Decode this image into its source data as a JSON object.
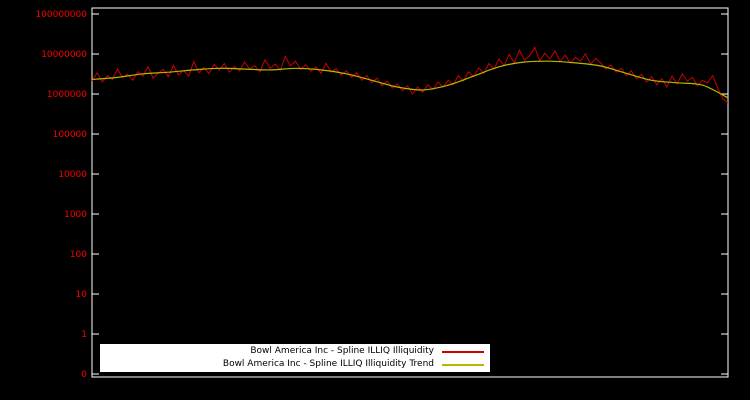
{
  "colors": {
    "background": "#000000",
    "axis": "#ffffff",
    "tick_label": "#ff0000",
    "legend_bg": "#ffffff",
    "legend_text": "#000000"
  },
  "chart_data": {
    "type": "line",
    "yscale": "log",
    "title": "",
    "xlabel": "",
    "ylabel": "",
    "grid": false,
    "legend_position": "bottom-center-inside",
    "yticks": [
      "0",
      "1",
      "10",
      "100",
      "1000",
      "10000",
      "100000",
      "1000000",
      "10000000",
      "100000000"
    ],
    "xticks": [],
    "series": [
      {
        "name": "Bowl America Inc - Spline ILLIQ Illiquidity",
        "color": "#cc0000",
        "style": "noisy",
        "values": [
          2100000,
          3400000,
          2000000,
          2900000,
          2300000,
          4200000,
          2600000,
          3100000,
          2200000,
          3600000,
          2800000,
          4800000,
          2500000,
          3300000,
          4100000,
          2700000,
          5200000,
          3000000,
          3900000,
          2800000,
          6500000,
          3400000,
          4600000,
          3200000,
          5500000,
          4000000,
          5800000,
          3500000,
          4900000,
          3800000,
          6300000,
          4200000,
          5100000,
          3600000,
          7200000,
          4400000,
          5600000,
          3900000,
          8800000,
          5000000,
          6600000,
          4100000,
          5400000,
          3700000,
          4800000,
          3300000,
          5900000,
          3500000,
          4300000,
          3000000,
          3800000,
          2600000,
          3400000,
          2200000,
          2900000,
          1900000,
          2500000,
          1600000,
          2100000,
          1400000,
          1800000,
          1200000,
          1600000,
          1000000,
          1500000,
          1100000,
          1700000,
          1300000,
          2000000,
          1500000,
          2200000,
          1700000,
          2900000,
          2100000,
          3600000,
          2700000,
          4500000,
          3300000,
          5800000,
          4200000,
          7500000,
          5100000,
          9800000,
          6000000,
          12500000,
          7000000,
          9000000,
          14800000,
          6800000,
          10500000,
          7600000,
          12000000,
          6500000,
          9400000,
          5900000,
          8200000,
          6700000,
          10200000,
          5500000,
          7800000,
          6000000,
          4200000,
          5300000,
          3500000,
          4400000,
          2900000,
          3800000,
          2400000,
          3100000,
          2000000,
          2700000,
          1700000,
          2400000,
          1500000,
          2800000,
          1800000,
          3200000,
          2100000,
          2600000,
          1600000,
          2200000,
          1900000,
          2900000,
          1400000,
          750000,
          600000
        ]
      },
      {
        "name": "Bowl America Inc - Spline ILLIQ Illiquidity Trend",
        "color": "#b8b800",
        "style": "smooth",
        "values": [
          2300000,
          2600000,
          3200000,
          3500000,
          4000000,
          4400000,
          4200000,
          4000000,
          4400000,
          4000000,
          3200000,
          2200000,
          1500000,
          1260000,
          1660000,
          2800000,
          4800000,
          6300000,
          6600000,
          6000000,
          5000000,
          3300000,
          2200000,
          1900000,
          1660000,
          800000
        ]
      }
    ]
  }
}
